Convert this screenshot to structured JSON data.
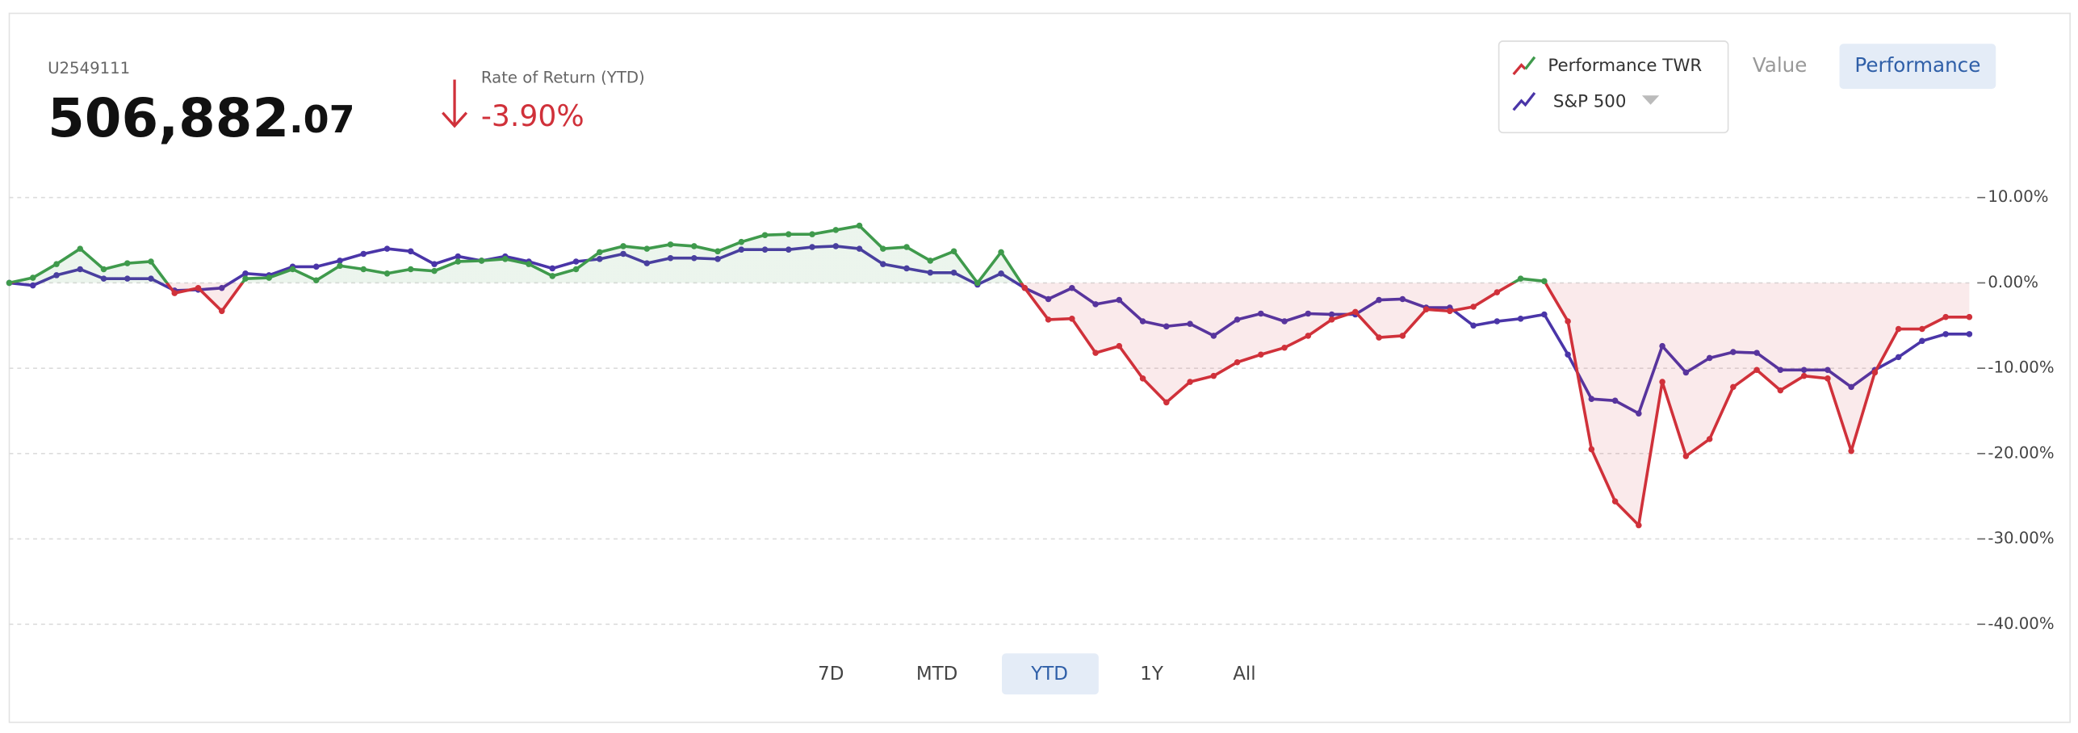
{
  "header": {
    "account": "U2549111",
    "value_main": "506,882",
    "value_decimal": ".07",
    "return_label": "Rate of Return (YTD)",
    "return_value": "-3.90%"
  },
  "view_tabs": [
    "Value",
    "Performance"
  ],
  "ranges": [
    "7D",
    "MTD",
    "YTD",
    "1Y",
    "All"
  ],
  "chart_data": {
    "type": "line",
    "series": [
      {
        "name": "Performance TWR",
        "color": "#d0313a",
        "positive_color": "#3f9a4c",
        "values": [
          0,
          0.6,
          2.2,
          4.0,
          1.6,
          2.3,
          2.5,
          -1.2,
          -0.6,
          -3.3,
          0.5,
          0.6,
          1.6,
          0.3,
          2.0,
          1.6,
          1.1,
          1.6,
          1.4,
          2.5,
          2.6,
          2.8,
          2.2,
          0.8,
          1.6,
          3.6,
          4.3,
          4.0,
          4.5,
          4.3,
          3.7,
          4.8,
          5.6,
          5.7,
          5.7,
          6.2,
          6.7,
          4.0,
          4.2,
          2.6,
          3.7,
          0,
          3.6,
          -0.6,
          -4.3,
          -4.2,
          -8.2,
          -7.4,
          -11.2,
          -14.0,
          -11.6,
          -10.9,
          -9.3,
          -8.4,
          -7.6,
          -6.2,
          -4.3,
          -3.4,
          -6.4,
          -6.2,
          -3.1,
          -3.3,
          -2.8,
          -1.1,
          0.5,
          0.2,
          -4.5,
          -19.5,
          -25.6,
          -28.4,
          -11.6,
          -20.3,
          -18.3,
          -12.2,
          -10.2,
          -12.6,
          -10.9,
          -11.2,
          -19.7,
          -10.5,
          -5.4,
          -5.4,
          -4.0,
          -4.0
        ]
      },
      {
        "name": "S&P 500",
        "color": "#4a35a8",
        "values": [
          0,
          -0.3,
          0.9,
          1.6,
          0.5,
          0.5,
          0.5,
          -0.9,
          -0.8,
          -0.6,
          1.1,
          0.9,
          1.9,
          1.9,
          2.6,
          3.4,
          4.0,
          3.7,
          2.2,
          3.1,
          2.6,
          3.1,
          2.5,
          1.7,
          2.5,
          2.8,
          3.4,
          2.3,
          2.9,
          2.9,
          2.8,
          3.9,
          3.9,
          3.9,
          4.2,
          4.3,
          4.0,
          2.2,
          1.7,
          1.2,
          1.2,
          -0.2,
          1.1,
          -0.6,
          -1.9,
          -0.6,
          -2.5,
          -2.0,
          -4.5,
          -5.1,
          -4.8,
          -6.2,
          -4.3,
          -3.6,
          -4.5,
          -3.6,
          -3.7,
          -3.7,
          -2.0,
          -1.9,
          -2.9,
          -2.9,
          -5.0,
          -4.5,
          -4.2,
          -3.7,
          -8.4,
          -13.6,
          -13.8,
          -15.3,
          -7.4,
          -10.5,
          -8.8,
          -8.1,
          -8.2,
          -10.2,
          -10.2,
          -10.2,
          -12.2,
          -10.2,
          -8.7,
          -6.8,
          -6.0,
          -6.0
        ]
      }
    ],
    "ylim": [
      -40,
      10
    ],
    "yticks": [
      {
        "value": 10,
        "label": "10.00%"
      },
      {
        "value": 0,
        "label": "0.00%"
      },
      {
        "value": -10,
        "label": "-10.00%"
      },
      {
        "value": -20,
        "label": "-20.00%"
      },
      {
        "value": -30,
        "label": "-30.00%"
      },
      {
        "value": -40,
        "label": "-40.00%"
      }
    ],
    "grid": true,
    "area": true
  }
}
